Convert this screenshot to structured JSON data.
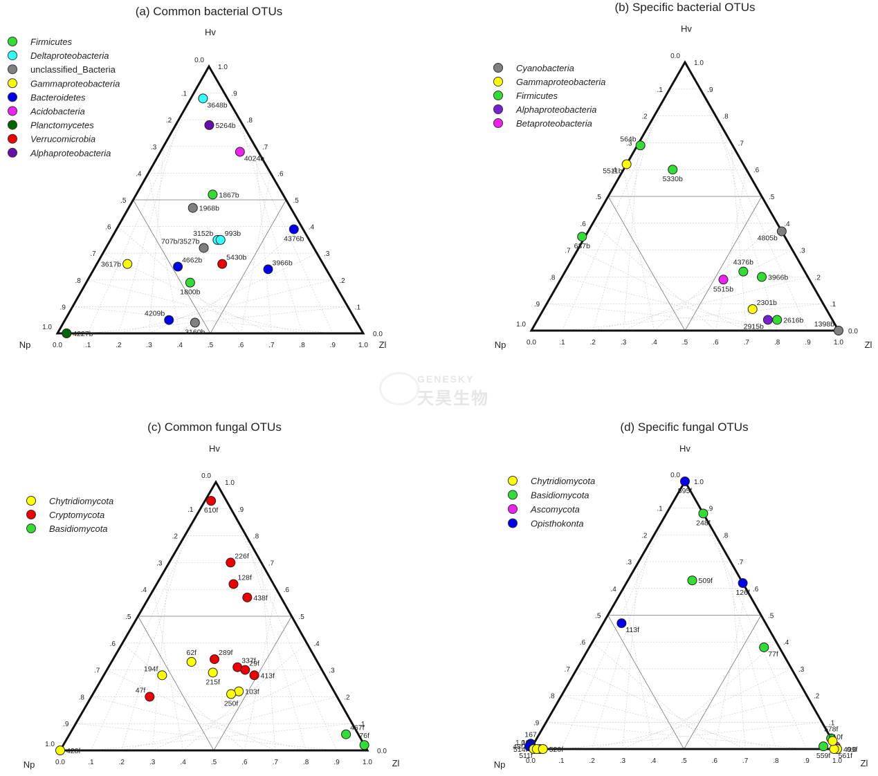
{
  "watermark": {
    "brand": "GENESKY",
    "chinese": "天昊生物"
  },
  "chart_data": [
    {
      "type": "ternary-scatter",
      "title": "(a) Common bacterial OTUs",
      "axes": {
        "top": "Hv",
        "left": "Np",
        "right": "Zl"
      },
      "ticks": [
        ".1",
        ".2",
        ".3",
        ".4",
        ".5",
        ".6",
        ".7",
        ".8",
        ".9"
      ],
      "corner_labels": {
        "top": [
          "0.0",
          "1.0"
        ],
        "left": "1.0",
        "right": "0.0",
        "bottom": [
          "0.0",
          "1.0"
        ]
      },
      "legend": [
        {
          "name": "Firmicutes",
          "color": "#33dd33"
        },
        {
          "name": "Deltaproteobacteria",
          "color": "#33ffff"
        },
        {
          "name": "unclassified_Bacteria",
          "color": "#808080"
        },
        {
          "name": "Gammaproteobacteria",
          "color": "#ffff00"
        },
        {
          "name": "Bacteroidetes",
          "color": "#0000ee"
        },
        {
          "name": "Acidobacteria",
          "color": "#ee22ee"
        },
        {
          "name": "Planctomycetes",
          "color": "#006600"
        },
        {
          "name": "Verrucomicrobia",
          "color": "#ee0000"
        },
        {
          "name": "Alphaproteobacteria",
          "color": "#6a0dad"
        }
      ],
      "points": [
        {
          "label": "3648b",
          "np": 0.08,
          "hv": 0.88,
          "zl": 0.04,
          "color": "#33ffff",
          "lpos": "br"
        },
        {
          "label": "5264b",
          "np": 0.11,
          "hv": 0.78,
          "zl": 0.11,
          "color": "#6a0dad",
          "lpos": "r"
        },
        {
          "label": "4024b",
          "np": 0.06,
          "hv": 0.68,
          "zl": 0.26,
          "color": "#ee22ee",
          "lpos": "br"
        },
        {
          "label": "1867b",
          "np": 0.23,
          "hv": 0.52,
          "zl": 0.25,
          "color": "#33dd33",
          "lpos": "r"
        },
        {
          "label": "1968b",
          "np": 0.32,
          "hv": 0.47,
          "zl": 0.21,
          "color": "#808080",
          "lpos": "r"
        },
        {
          "label": "3152b",
          "np": 0.3,
          "hv": 0.35,
          "zl": 0.35,
          "color": "#33ffff",
          "lpos": "tl"
        },
        {
          "label": "993b",
          "np": 0.29,
          "hv": 0.35,
          "zl": 0.36,
          "color": "#33ffff",
          "lpos": "tr"
        },
        {
          "label": "707b/3527b",
          "np": 0.36,
          "hv": 0.32,
          "zl": 0.32,
          "color": "#808080",
          "lpos": "tl"
        },
        {
          "label": "4376b",
          "np": 0.03,
          "hv": 0.39,
          "zl": 0.58,
          "color": "#0000ee",
          "lpos": "b"
        },
        {
          "label": "3617b",
          "np": 0.64,
          "hv": 0.26,
          "zl": 0.1,
          "color": "#ffff00",
          "lpos": "l"
        },
        {
          "label": "4662b",
          "np": 0.48,
          "hv": 0.25,
          "zl": 0.27,
          "color": "#0000ee",
          "lpos": "tr"
        },
        {
          "label": "5430b",
          "np": 0.33,
          "hv": 0.26,
          "zl": 0.41,
          "color": "#ee0000",
          "lpos": "tr"
        },
        {
          "label": "3966b",
          "np": 0.19,
          "hv": 0.24,
          "zl": 0.57,
          "color": "#0000ee",
          "lpos": "tr"
        },
        {
          "label": "1800b",
          "np": 0.47,
          "hv": 0.19,
          "zl": 0.34,
          "color": "#33dd33",
          "lpos": "b"
        },
        {
          "label": "4209b",
          "np": 0.61,
          "hv": 0.05,
          "zl": 0.34,
          "color": "#0000ee",
          "lpos": "tl"
        },
        {
          "label": "3160b",
          "np": 0.53,
          "hv": 0.04,
          "zl": 0.43,
          "color": "#808080",
          "lpos": "b"
        },
        {
          "label": "4227b",
          "np": 0.97,
          "hv": 0.0,
          "zl": 0.03,
          "color": "#006600",
          "lpos": "r"
        }
      ]
    },
    {
      "type": "ternary-scatter",
      "title": "(b) Specific bacterial OTUs",
      "axes": {
        "top": "Hv",
        "left": "Np",
        "right": "Zl"
      },
      "ticks": [
        ".1",
        ".2",
        ".3",
        ".4",
        ".5",
        ".6",
        ".7",
        ".8",
        ".9"
      ],
      "corner_labels": {
        "top": [
          "0.0",
          "1.0"
        ],
        "left": "1.0",
        "right": "0.0",
        "bottom": [
          "0.0",
          "1.0"
        ]
      },
      "legend": [
        {
          "name": "Cyanobacteria",
          "color": "#808080"
        },
        {
          "name": "Gammaproteobacteria",
          "color": "#ffff00"
        },
        {
          "name": "Firmicutes",
          "color": "#33dd33"
        },
        {
          "name": "Alphaproteobacteria",
          "color": "#7a1fd0"
        },
        {
          "name": "Betaproteobacteria",
          "color": "#ee22ee"
        }
      ],
      "points": [
        {
          "label": "564b",
          "np": 0.3,
          "hv": 0.69,
          "zl": 0.01,
          "color": "#33dd33",
          "lpos": "tl"
        },
        {
          "label": "5511b",
          "np": 0.38,
          "hv": 0.62,
          "zl": 0.0,
          "color": "#ffff00",
          "lpos": "bl"
        },
        {
          "label": "5330b",
          "np": 0.24,
          "hv": 0.6,
          "zl": 0.16,
          "color": "#33dd33",
          "lpos": "b"
        },
        {
          "label": "637b",
          "np": 0.66,
          "hv": 0.35,
          "zl": -0.01,
          "color": "#33dd33",
          "lpos": "b"
        },
        {
          "label": "4805b",
          "np": 0.0,
          "hv": 0.37,
          "zl": 0.63,
          "color": "#808080",
          "lpos": "bl"
        },
        {
          "label": "4376b",
          "np": 0.2,
          "hv": 0.22,
          "zl": 0.58,
          "color": "#33dd33",
          "lpos": "t"
        },
        {
          "label": "3966b",
          "np": 0.15,
          "hv": 0.2,
          "zl": 0.65,
          "color": "#33dd33",
          "lpos": "r"
        },
        {
          "label": "5515b",
          "np": 0.28,
          "hv": 0.19,
          "zl": 0.53,
          "color": "#ee22ee",
          "lpos": "b"
        },
        {
          "label": "2301b",
          "np": 0.24,
          "hv": 0.08,
          "zl": 0.68,
          "color": "#ffff00",
          "lpos": "tr"
        },
        {
          "label": "2915b",
          "np": 0.21,
          "hv": 0.04,
          "zl": 0.75,
          "color": "#7a1fd0",
          "lpos": "bl"
        },
        {
          "label": "2616b",
          "np": 0.18,
          "hv": 0.04,
          "zl": 0.78,
          "color": "#33dd33",
          "lpos": "r"
        },
        {
          "label": "1398b",
          "np": 0.0,
          "hv": 0.0,
          "zl": 1.0,
          "color": "#808080",
          "lpos": "tl"
        }
      ]
    },
    {
      "type": "ternary-scatter",
      "title": "(c) Common fungal OTUs",
      "axes": {
        "top": "Hv",
        "left": "Np",
        "right": "Zl"
      },
      "ticks": [
        ".1",
        ".2",
        ".3",
        ".4",
        ".5",
        ".6",
        ".7",
        ".8",
        ".9"
      ],
      "corner_labels": {
        "top": [
          "0.0",
          "1.0"
        ],
        "left": "1.0",
        "right": "0.0",
        "bottom": [
          "0.0",
          "1.0"
        ]
      },
      "legend": [
        {
          "name": "Chytridiomycota",
          "color": "#ffff00"
        },
        {
          "name": "Cryptomycota",
          "color": "#ee0000"
        },
        {
          "name": "Basidiomycota",
          "color": "#33dd33"
        }
      ],
      "points": [
        {
          "label": "610f",
          "np": 0.05,
          "hv": 0.93,
          "zl": 0.02,
          "color": "#ee0000",
          "lpos": "b"
        },
        {
          "label": "226f",
          "np": 0.1,
          "hv": 0.7,
          "zl": 0.2,
          "color": "#ee0000",
          "lpos": "tr"
        },
        {
          "label": "128f",
          "np": 0.13,
          "hv": 0.62,
          "zl": 0.25,
          "color": "#ee0000",
          "lpos": "tr"
        },
        {
          "label": "438f",
          "np": 0.11,
          "hv": 0.57,
          "zl": 0.32,
          "color": "#ee0000",
          "lpos": "r"
        },
        {
          "label": "62f",
          "np": 0.41,
          "hv": 0.33,
          "zl": 0.26,
          "color": "#ffff00",
          "lpos": "t"
        },
        {
          "label": "289f",
          "np": 0.33,
          "hv": 0.34,
          "zl": 0.33,
          "color": "#ee0000",
          "lpos": "tr"
        },
        {
          "label": "337f",
          "np": 0.27,
          "hv": 0.31,
          "zl": 0.42,
          "color": "#ee0000",
          "lpos": "tr"
        },
        {
          "label": "29f",
          "np": 0.25,
          "hv": 0.3,
          "zl": 0.45,
          "color": "#ee0000",
          "lpos": "tr"
        },
        {
          "label": "413f",
          "np": 0.23,
          "hv": 0.28,
          "zl": 0.49,
          "color": "#ee0000",
          "lpos": "r"
        },
        {
          "label": "194f",
          "np": 0.53,
          "hv": 0.28,
          "zl": 0.19,
          "color": "#ffff00",
          "lpos": "tl"
        },
        {
          "label": "215f",
          "np": 0.36,
          "hv": 0.29,
          "zl": 0.35,
          "color": "#ffff00",
          "lpos": "b"
        },
        {
          "label": "103f",
          "np": 0.31,
          "hv": 0.22,
          "zl": 0.47,
          "color": "#ffff00",
          "lpos": "r"
        },
        {
          "label": "250f",
          "np": 0.34,
          "hv": 0.21,
          "zl": 0.45,
          "color": "#ffff00",
          "lpos": "b"
        },
        {
          "label": "47f",
          "np": 0.61,
          "hv": 0.2,
          "zl": 0.19,
          "color": "#ee0000",
          "lpos": "tl"
        },
        {
          "label": "467f",
          "np": 0.04,
          "hv": 0.06,
          "zl": 0.9,
          "color": "#33dd33",
          "lpos": "tr"
        },
        {
          "label": "76f",
          "np": 0.0,
          "hv": 0.02,
          "zl": 0.98,
          "color": "#33dd33",
          "lpos": "t"
        },
        {
          "label": "428f",
          "np": 1.0,
          "hv": 0.0,
          "zl": 0.0,
          "color": "#ffff00",
          "lpos": "r"
        }
      ]
    },
    {
      "type": "ternary-scatter",
      "title": "(d) Specific fungal OTUs",
      "axes": {
        "top": "Hv",
        "left": "Np",
        "right": "Zl"
      },
      "ticks": [
        ".1",
        ".2",
        ".3",
        ".4",
        ".5",
        ".6",
        ".7",
        ".8",
        ".9"
      ],
      "corner_labels": {
        "top": [
          "0.0",
          "1.0"
        ],
        "left": "1.0",
        "right": "0.0",
        "bottom": [
          "0.0",
          "1.0"
        ]
      },
      "legend": [
        {
          "name": "Chytridiomycota",
          "color": "#ffff00"
        },
        {
          "name": "Basidiomycota",
          "color": "#33dd33"
        },
        {
          "name": "Ascomycota",
          "color": "#ee22ee"
        },
        {
          "name": "Opisthokonta",
          "color": "#0000ee"
        }
      ],
      "points": [
        {
          "label": "595f",
          "np": 0.0,
          "hv": 1.0,
          "zl": 0.0,
          "color": "#0000ee",
          "lpos": "b"
        },
        {
          "label": "248f",
          "np": 0.0,
          "hv": 0.88,
          "zl": 0.12,
          "color": "#33dd33",
          "lpos": "b"
        },
        {
          "label": "509f",
          "np": 0.16,
          "hv": 0.63,
          "zl": 0.21,
          "color": "#33dd33",
          "lpos": "r"
        },
        {
          "label": "126f",
          "np": 0.0,
          "hv": 0.62,
          "zl": 0.38,
          "color": "#0000ee",
          "lpos": "b"
        },
        {
          "label": "113f",
          "np": 0.47,
          "hv": 0.47,
          "zl": 0.06,
          "color": "#0000ee",
          "lpos": "br"
        },
        {
          "label": "77f",
          "np": 0.05,
          "hv": 0.38,
          "zl": 0.57,
          "color": "#33dd33",
          "lpos": "br"
        },
        {
          "label": "578f",
          "np": 0.0,
          "hv": 0.04,
          "zl": 0.96,
          "color": "#33dd33",
          "lpos": "t"
        },
        {
          "label": "559f",
          "np": 0.04,
          "hv": 0.01,
          "zl": 0.95,
          "color": "#33dd33",
          "lpos": "b"
        },
        {
          "label": "510f",
          "np": 0.0,
          "hv": 0.01,
          "zl": 0.99,
          "color": "#ee22ee",
          "lpos": "t"
        },
        {
          "label": "499f",
          "np": 0.0,
          "hv": 0.0,
          "zl": 1.0,
          "color": "#ffff00",
          "lpos": "r"
        },
        {
          "label": "561f",
          "np": 0.01,
          "hv": 0.0,
          "zl": 0.99,
          "color": "#ffff00",
          "lpos": "br"
        },
        {
          "label": "79",
          "np": 0.0,
          "hv": 0.03,
          "zl": 0.97,
          "color": "#ffff00",
          "lpos": "none"
        },
        {
          "label": "167",
          "np": 0.99,
          "hv": 0.02,
          "zl": -0.01,
          "color": "#0000ee",
          "lpos": "t"
        },
        {
          "label": "107f",
          "np": 0.97,
          "hv": 0.0,
          "zl": 0.03,
          "color": "#ffff00",
          "lpos": "tl"
        },
        {
          "label": "48f",
          "np": 1.0,
          "hv": 0.01,
          "zl": -0.01,
          "color": "#0000ee",
          "lpos": "l"
        },
        {
          "label": "514f",
          "np": 0.99,
          "hv": 0.0,
          "zl": 0.01,
          "color": "#ffff00",
          "lpos": "l"
        },
        {
          "label": "511f",
          "np": 0.98,
          "hv": 0.0,
          "zl": 0.02,
          "color": "#ffff00",
          "lpos": "bl"
        },
        {
          "label": "520f",
          "np": 0.96,
          "hv": 0.0,
          "zl": 0.04,
          "color": "#ffff00",
          "lpos": "r"
        }
      ]
    }
  ]
}
